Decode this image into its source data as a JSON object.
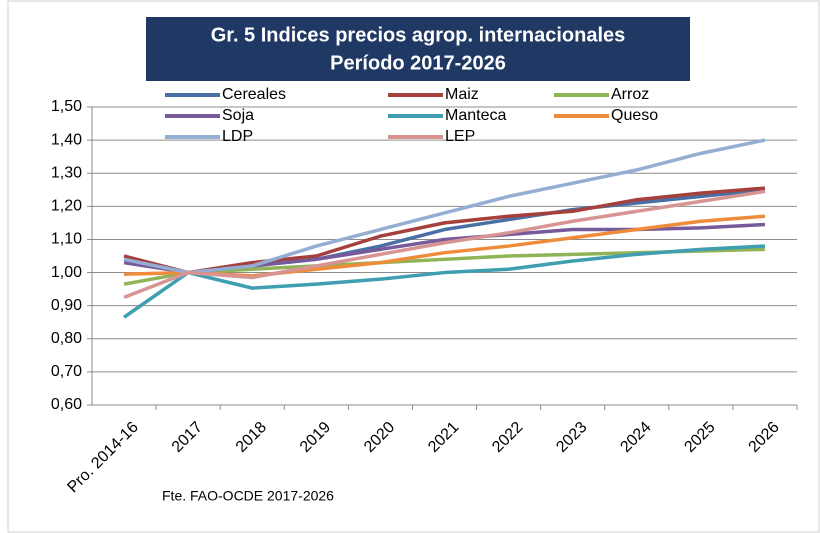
{
  "chart_data": {
    "type": "line",
    "title": "Gr. 5 Indices precios agrop. internacionales",
    "subtitle": "Período 2017-2026",
    "source": "Fte. FAO-OCDE 2017-2026",
    "categories": [
      "Pro. 2014-16",
      "2017",
      "2018",
      "2019",
      "2020",
      "2021",
      "2022",
      "2023",
      "2024",
      "2025",
      "2026"
    ],
    "series": [
      {
        "name": "Cereales",
        "color": "#4a6fa5",
        "values": [
          1.04,
          1.0,
          1.02,
          1.04,
          1.08,
          1.13,
          1.16,
          1.19,
          1.21,
          1.23,
          1.25
        ]
      },
      {
        "name": "Maiz",
        "color": "#a5403d",
        "values": [
          1.05,
          1.0,
          1.03,
          1.05,
          1.11,
          1.15,
          1.17,
          1.185,
          1.22,
          1.24,
          1.255
        ]
      },
      {
        "name": "Arroz",
        "color": "#8fb356",
        "values": [
          0.965,
          1.0,
          1.01,
          1.02,
          1.03,
          1.04,
          1.05,
          1.055,
          1.06,
          1.065,
          1.07
        ]
      },
      {
        "name": "Soja",
        "color": "#765a99",
        "values": [
          1.03,
          1.0,
          1.02,
          1.04,
          1.07,
          1.1,
          1.115,
          1.13,
          1.13,
          1.135,
          1.145
        ]
      },
      {
        "name": "Manteca",
        "color": "#3f9fb1",
        "values": [
          0.865,
          1.0,
          0.953,
          0.965,
          0.98,
          1.0,
          1.01,
          1.035,
          1.055,
          1.07,
          1.08
        ]
      },
      {
        "name": "Queso",
        "color": "#ef8c3c",
        "values": [
          0.995,
          1.0,
          0.99,
          1.01,
          1.03,
          1.06,
          1.08,
          1.105,
          1.13,
          1.155,
          1.17
        ]
      },
      {
        "name": "LDP",
        "color": "#94aed3",
        "values": [
          1.04,
          1.0,
          1.02,
          1.08,
          1.13,
          1.18,
          1.23,
          1.27,
          1.31,
          1.36,
          1.4
        ]
      },
      {
        "name": "LEP",
        "color": "#d79492",
        "values": [
          0.925,
          1.0,
          0.985,
          1.02,
          1.055,
          1.09,
          1.12,
          1.155,
          1.185,
          1.215,
          1.245
        ]
      }
    ],
    "ylim": [
      0.6,
      1.5
    ],
    "yticks": [
      {
        "value": 0.6,
        "label": "0,60"
      },
      {
        "value": 0.7,
        "label": "0,70"
      },
      {
        "value": 0.8,
        "label": "0,80"
      },
      {
        "value": 0.9,
        "label": "0,90"
      },
      {
        "value": 1.0,
        "label": "1,00"
      },
      {
        "value": 1.1,
        "label": "1,10"
      },
      {
        "value": 1.2,
        "label": "1,20"
      },
      {
        "value": 1.3,
        "label": "1,30"
      },
      {
        "value": 1.4,
        "label": "1,40"
      },
      {
        "value": 1.5,
        "label": "1,50"
      }
    ],
    "grid": true
  }
}
